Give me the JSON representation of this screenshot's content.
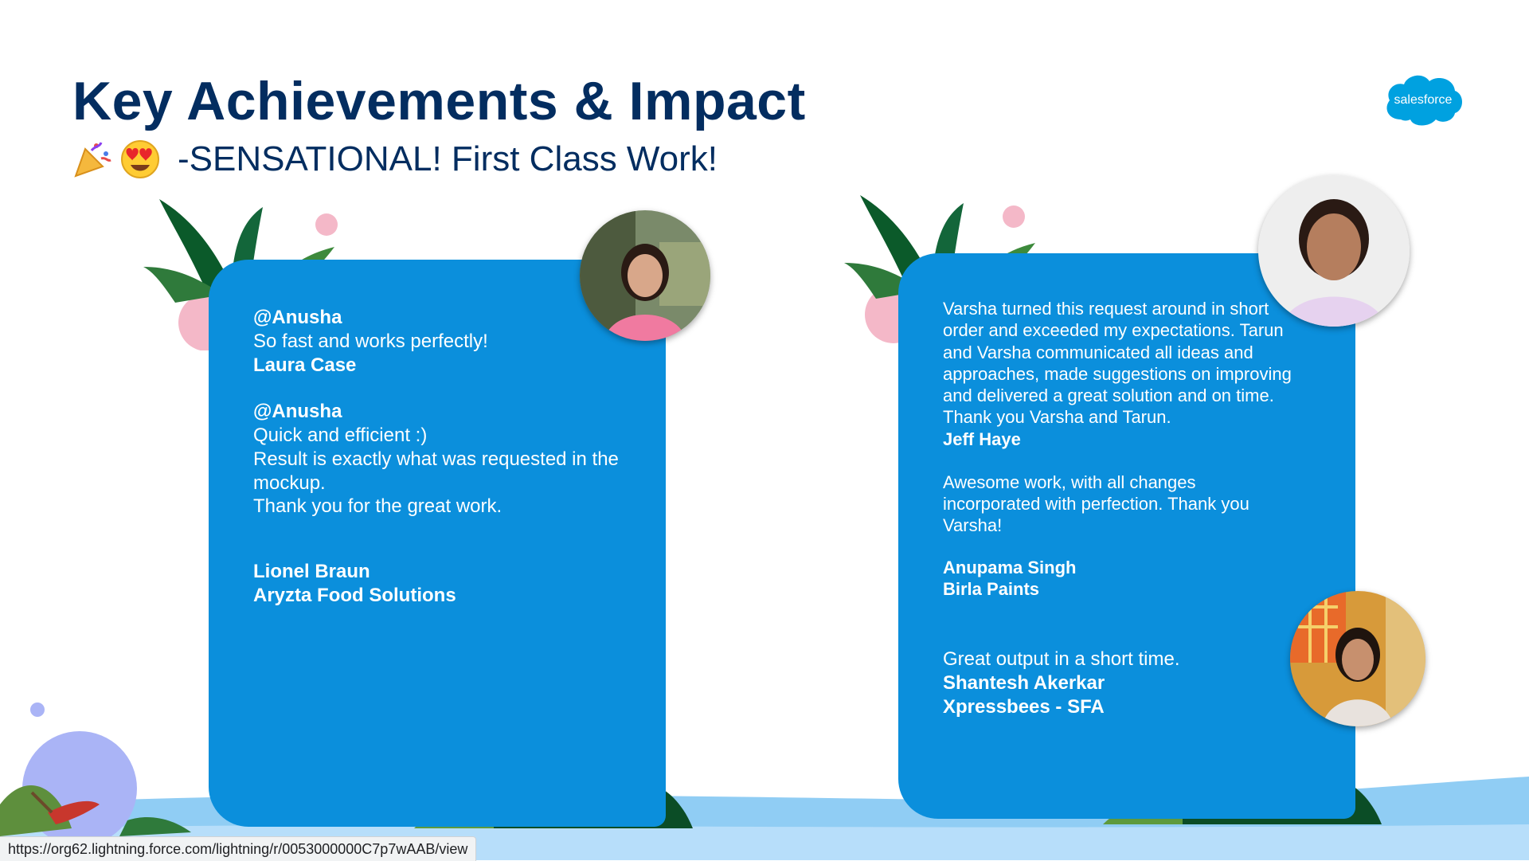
{
  "slide": {
    "title": "Key Achievements & Impact",
    "subtitle": "-SENSATIONAL! First Class Work!",
    "emoji_1": "party-popper-icon",
    "emoji_2": "heart-eyes-icon"
  },
  "logo": {
    "text": "salesforce"
  },
  "left_card": {
    "block1": {
      "handle": "@Anusha",
      "message": "So fast and works perfectly!",
      "author": "Laura Case"
    },
    "block2": {
      "handle": "@Anusha",
      "line1": "Quick and efficient :)",
      "line2": "Result is exactly what was requested in the mockup.",
      "line3": "Thank you for the great work.",
      "author": "Lionel Braun",
      "company": "Aryzta Food Solutions"
    }
  },
  "right_card": {
    "block1": {
      "message": "Varsha turned this request around in short order and exceeded my expectations. Tarun and Varsha communicated all ideas and approaches, made suggestions on improving and delivered a great solution and on time. Thank you Varsha and Tarun.",
      "author": "Jeff Haye"
    },
    "block2": {
      "message": "Awesome work, with all changes incorporated with perfection. Thank you Varsha!",
      "author": "Anupama Singh",
      "company": "Birla Paints"
    },
    "block3": {
      "message": "Great output in a short time.",
      "author": "Shantesh Akerkar",
      "company": "Xpressbees - SFA"
    }
  },
  "status_bar": {
    "url": "https://org62.lightning.force.com/lightning/r/0053000000C7p7wAAB/view"
  },
  "colors": {
    "title": "#032d60",
    "card": "#0b8fdc",
    "ground": "#90cdf4",
    "foliage_dark": "#0b5a2a",
    "accent_pink": "#f4b8c8"
  }
}
